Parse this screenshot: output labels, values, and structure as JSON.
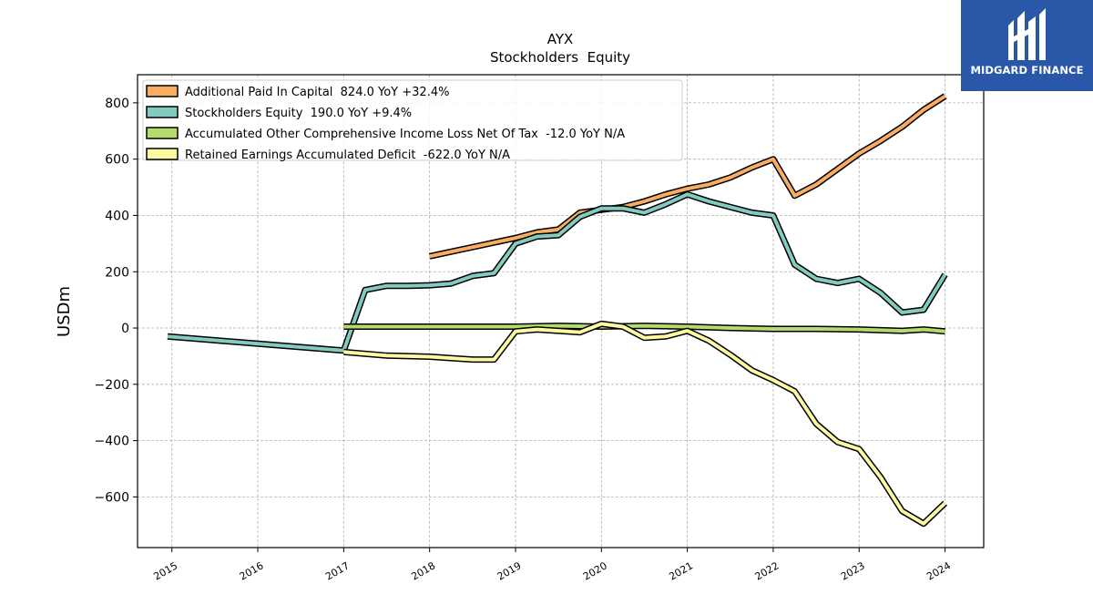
{
  "chart_data": {
    "type": "line",
    "title": "AYX",
    "subtitle": "Stockholders  Equity",
    "ylabel": "USDm",
    "xlabel": "",
    "ylim": [
      -780,
      900
    ],
    "xlim": [
      2014.6,
      2024.45
    ],
    "yticks": [
      -600,
      -400,
      -200,
      0,
      200,
      400,
      600,
      800
    ],
    "yticklabels": [
      "−600",
      "−400",
      "−200",
      "0",
      "200",
      "400",
      "600",
      "800"
    ],
    "xticks": [
      2015,
      2016,
      2017,
      2018,
      2019,
      2020,
      2021,
      2022,
      2023,
      2024
    ],
    "xticklabels": [
      "2015",
      "2016",
      "2017",
      "2018",
      "2019",
      "2020",
      "2021",
      "2022",
      "2023",
      "2024"
    ],
    "grid": true,
    "legend_position": "top-left",
    "series": [
      {
        "name": "Additional Paid In Capital  824.0 YoY +32.4%",
        "color": "#f9ad64",
        "points": [
          [
            2018.0,
            255
          ],
          [
            2019.0,
            320
          ],
          [
            2019.25,
            340
          ],
          [
            2019.5,
            350
          ],
          [
            2019.75,
            410
          ],
          [
            2020.0,
            420
          ],
          [
            2020.25,
            430
          ],
          [
            2020.5,
            450
          ],
          [
            2020.75,
            475
          ],
          [
            2021.0,
            495
          ],
          [
            2021.25,
            510
          ],
          [
            2021.5,
            535
          ],
          [
            2021.75,
            570
          ],
          [
            2022.0,
            600
          ],
          [
            2022.25,
            470
          ],
          [
            2022.5,
            510
          ],
          [
            2022.75,
            565
          ],
          [
            2023.0,
            620
          ],
          [
            2023.25,
            665
          ],
          [
            2023.5,
            715
          ],
          [
            2023.75,
            775
          ],
          [
            2024.0,
            824
          ]
        ]
      },
      {
        "name": "Stockholders Equity  190.0 YoY +9.4%",
        "color": "#84cbbf",
        "points": [
          [
            2014.95,
            -30
          ],
          [
            2017.0,
            -80
          ],
          [
            2017.25,
            135
          ],
          [
            2017.5,
            150
          ],
          [
            2017.75,
            150
          ],
          [
            2018.0,
            152
          ],
          [
            2018.25,
            158
          ],
          [
            2018.5,
            185
          ],
          [
            2018.75,
            195
          ],
          [
            2019.0,
            300
          ],
          [
            2019.25,
            325
          ],
          [
            2019.5,
            330
          ],
          [
            2019.75,
            395
          ],
          [
            2020.0,
            425
          ],
          [
            2020.25,
            425
          ],
          [
            2020.5,
            410
          ],
          [
            2020.75,
            440
          ],
          [
            2021.0,
            475
          ],
          [
            2021.25,
            450
          ],
          [
            2021.5,
            430
          ],
          [
            2021.75,
            410
          ],
          [
            2022.0,
            400
          ],
          [
            2022.25,
            225
          ],
          [
            2022.5,
            175
          ],
          [
            2022.75,
            160
          ],
          [
            2023.0,
            175
          ],
          [
            2023.25,
            125
          ],
          [
            2023.5,
            55
          ],
          [
            2023.75,
            65
          ],
          [
            2024.0,
            190
          ]
        ]
      },
      {
        "name": "Accumulated Other Comprehensive Income Loss Net Of Tax  -12.0 YoY N/A",
        "color": "#b3dc6c",
        "points": [
          [
            2017.0,
            5
          ],
          [
            2017.5,
            5
          ],
          [
            2018.0,
            5
          ],
          [
            2018.5,
            5
          ],
          [
            2019.0,
            5
          ],
          [
            2019.5,
            8
          ],
          [
            2020.0,
            5
          ],
          [
            2020.5,
            8
          ],
          [
            2021.0,
            5
          ],
          [
            2021.5,
            0
          ],
          [
            2022.0,
            -3
          ],
          [
            2022.5,
            -3
          ],
          [
            2023.0,
            -5
          ],
          [
            2023.5,
            -10
          ],
          [
            2023.75,
            -5
          ],
          [
            2024.0,
            -12
          ]
        ]
      },
      {
        "name": "Retained Earnings Accumulated Deficit  -622.0 YoY N/A",
        "color": "#fcf9a5",
        "points": [
          [
            2017.0,
            -85
          ],
          [
            2017.5,
            -98
          ],
          [
            2018.0,
            -102
          ],
          [
            2018.5,
            -112
          ],
          [
            2018.75,
            -112
          ],
          [
            2019.0,
            -12
          ],
          [
            2019.25,
            -5
          ],
          [
            2019.5,
            -10
          ],
          [
            2019.75,
            -15
          ],
          [
            2020.0,
            15
          ],
          [
            2020.25,
            5
          ],
          [
            2020.5,
            -35
          ],
          [
            2020.75,
            -30
          ],
          [
            2021.0,
            -10
          ],
          [
            2021.25,
            -45
          ],
          [
            2021.5,
            -95
          ],
          [
            2021.75,
            -150
          ],
          [
            2022.0,
            -185
          ],
          [
            2022.25,
            -225
          ],
          [
            2022.5,
            -340
          ],
          [
            2022.75,
            -405
          ],
          [
            2023.0,
            -430
          ],
          [
            2023.25,
            -530
          ],
          [
            2023.5,
            -650
          ],
          [
            2023.75,
            -695
          ],
          [
            2024.0,
            -622
          ]
        ]
      }
    ]
  },
  "logo": {
    "text": "MIDGARD FINANCE",
    "icon": "midgard-logo-icon",
    "background": "#2b57a8"
  }
}
